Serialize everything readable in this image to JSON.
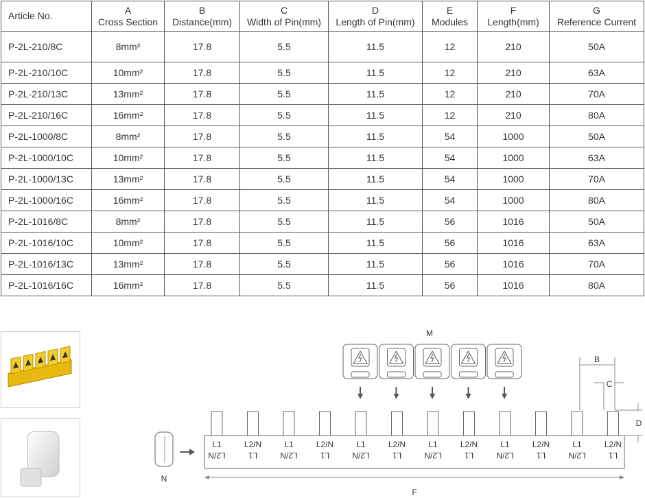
{
  "table": {
    "columns": [
      {
        "letter": "",
        "name": "Article No."
      },
      {
        "letter": "A",
        "name": "Cross Section"
      },
      {
        "letter": "B",
        "name": "Distance(mm)"
      },
      {
        "letter": "C",
        "name": "Width of Pin(mm)"
      },
      {
        "letter": "D",
        "name": "Length of Pin(mm)"
      },
      {
        "letter": "E",
        "name": "Modules"
      },
      {
        "letter": "F",
        "name": "Length(mm)"
      },
      {
        "letter": "G",
        "name": "Reference Current"
      }
    ],
    "rows": [
      [
        "P-2L-210/8C",
        "8mm²",
        "17.8",
        "5.5",
        "11.5",
        "12",
        "210",
        "50A"
      ],
      [
        "P-2L-210/10C",
        "10mm²",
        "17.8",
        "5.5",
        "11.5",
        "12",
        "210",
        "63A"
      ],
      [
        "P-2L-210/13C",
        "13mm²",
        "17.8",
        "5.5",
        "11.5",
        "12",
        "210",
        "70A"
      ],
      [
        "P-2L-210/16C",
        "16mm²",
        "17.8",
        "5.5",
        "11.5",
        "12",
        "210",
        "80A"
      ],
      [
        "P-2L-1000/8C",
        "8mm²",
        "17.8",
        "5.5",
        "11.5",
        "54",
        "1000",
        "50A"
      ],
      [
        "P-2L-1000/10C",
        "10mm²",
        "17.8",
        "5.5",
        "11.5",
        "54",
        "1000",
        "63A"
      ],
      [
        "P-2L-1000/13C",
        "13mm²",
        "17.8",
        "5.5",
        "11.5",
        "54",
        "1000",
        "70A"
      ],
      [
        "P-2L-1000/16C",
        "16mm²",
        "17.8",
        "5.5",
        "11.5",
        "54",
        "1000",
        "80A"
      ],
      [
        "P-2L-1016/8C",
        "8mm²",
        "17.8",
        "5.5",
        "11.5",
        "56",
        "1016",
        "50A"
      ],
      [
        "P-2L-1016/10C",
        "10mm²",
        "17.8",
        "5.5",
        "11.5",
        "56",
        "1016",
        "63A"
      ],
      [
        "P-2L-1016/13C",
        "13mm²",
        "17.8",
        "5.5",
        "11.5",
        "56",
        "1016",
        "70A"
      ],
      [
        "P-2L-1016/16C",
        "16mm²",
        "17.8",
        "5.5",
        "11.5",
        "56",
        "1016",
        "80A"
      ]
    ]
  },
  "diagram": {
    "label_m": "M",
    "label_n": "N",
    "label_b": "B",
    "label_c": "C",
    "label_d": "D",
    "label_f": "F",
    "pin_labels": [
      {
        "top": "L1",
        "bottom": "L2/N"
      },
      {
        "top": "L2/N",
        "bottom": "L1"
      },
      {
        "top": "L1",
        "bottom": "L2/N"
      },
      {
        "top": "L2/N",
        "bottom": "L1"
      },
      {
        "top": "L1",
        "bottom": "L2/N"
      },
      {
        "top": "L2/N",
        "bottom": "L1"
      },
      {
        "top": "L1",
        "bottom": "L2/N"
      },
      {
        "top": "L2/N",
        "bottom": "L1"
      },
      {
        "top": "L1",
        "bottom": "L2/N"
      },
      {
        "top": "L2/N",
        "bottom": "L1"
      },
      {
        "top": "L1",
        "bottom": "L2/N"
      },
      {
        "top": "L2/N",
        "bottom": "L1"
      }
    ],
    "module_count": 5,
    "colors": {
      "busbar_yellow": "#f0c419",
      "line": "#666666",
      "cap": "#e8e8e8"
    }
  },
  "thumbnails": [
    {
      "icon": "yellow-busbar-photo"
    },
    {
      "icon": "white-end-cap-photo"
    }
  ]
}
